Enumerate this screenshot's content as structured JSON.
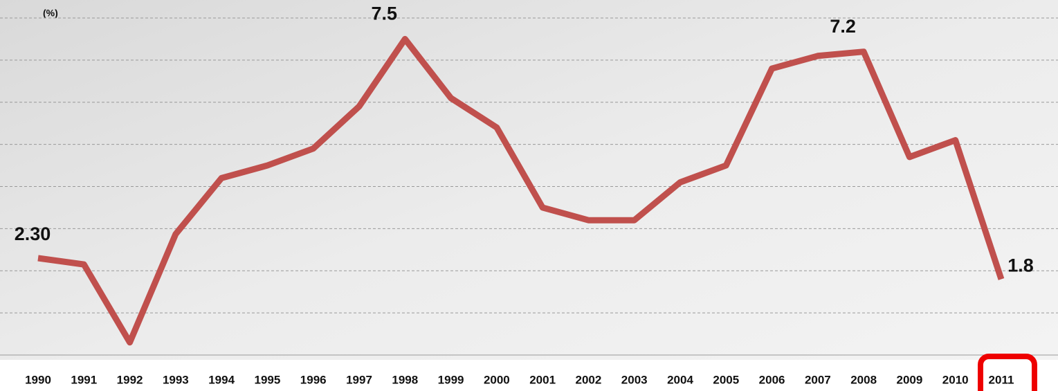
{
  "chart_data": {
    "type": "line",
    "y_label": "(%)",
    "categories": [
      "1990",
      "1991",
      "1992",
      "1993",
      "1994",
      "1995",
      "1996",
      "1997",
      "1998",
      "1999",
      "2000",
      "2001",
      "2002",
      "2003",
      "2004",
      "2005",
      "2006",
      "2007",
      "2008",
      "2009",
      "2010",
      "2011"
    ],
    "series": [
      {
        "color": "#c0504d",
        "values": [
          2.3,
          2.15,
          0.3,
          2.87,
          4.2,
          4.5,
          4.9,
          5.9,
          7.5,
          6.1,
          5.4,
          3.5,
          3.2,
          3.2,
          4.1,
          4.5,
          6.8,
          7.1,
          7.2,
          4.7,
          5.1,
          1.8
        ],
        "value_labels": [
          "2.30",
          null,
          null,
          null,
          null,
          null,
          null,
          null,
          "7.5",
          null,
          null,
          null,
          null,
          null,
          null,
          null,
          null,
          null,
          "7.2",
          null,
          null,
          "1.8"
        ]
      }
    ],
    "ylim": [
      0,
      8
    ],
    "yticks": [
      0,
      1,
      2,
      3,
      4,
      5,
      6,
      7,
      8
    ],
    "grid": true
  }
}
